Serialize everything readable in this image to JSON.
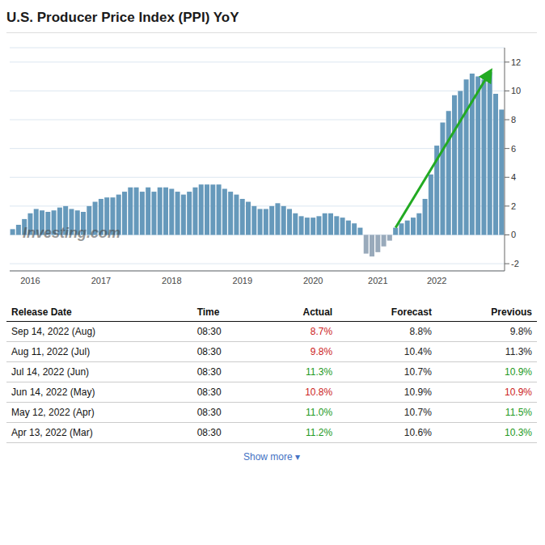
{
  "chart_data": {
    "type": "bar",
    "title": "U.S. Producer Price Index (PPI) YoY",
    "categories": [
      null,
      null,
      null,
      "2016",
      null,
      null,
      null,
      null,
      null,
      null,
      null,
      null,
      null,
      null,
      null,
      "2017",
      null,
      null,
      null,
      null,
      null,
      null,
      null,
      null,
      null,
      null,
      null,
      "2018",
      null,
      null,
      null,
      null,
      null,
      null,
      null,
      null,
      null,
      null,
      null,
      "2019",
      null,
      null,
      null,
      null,
      null,
      null,
      null,
      null,
      null,
      null,
      null,
      "2020",
      null,
      null,
      null,
      null,
      null,
      null,
      null,
      null,
      null,
      null,
      "2021",
      null,
      null,
      null,
      null,
      null,
      null,
      null,
      null,
      null,
      "2022",
      null,
      null,
      null,
      null,
      null,
      null,
      null,
      null,
      null,
      null,
      null
    ],
    "values": [
      0.4,
      0.7,
      1.1,
      1.5,
      1.8,
      1.7,
      1.6,
      1.7,
      1.9,
      2.0,
      1.8,
      1.7,
      1.6,
      2.0,
      2.3,
      2.5,
      2.6,
      2.6,
      2.8,
      3.0,
      3.3,
      3.3,
      3.0,
      3.3,
      3.0,
      3.3,
      3.3,
      3.2,
      3.0,
      2.8,
      3.0,
      3.3,
      3.5,
      3.5,
      3.5,
      3.5,
      3.2,
      3.0,
      2.8,
      2.5,
      2.3,
      2.0,
      1.8,
      1.8,
      2.0,
      2.2,
      2.0,
      1.8,
      1.5,
      1.3,
      1.2,
      1.2,
      1.3,
      1.5,
      1.5,
      1.3,
      1.2,
      1.0,
      0.8,
      0.5,
      -1.3,
      -1.5,
      -1.2,
      -0.8,
      -0.4,
      0.5,
      0.8,
      1.0,
      1.2,
      1.5,
      2.5,
      4.2,
      6.2,
      7.8,
      8.6,
      9.7,
      10.0,
      10.8,
      11.2,
      11.0,
      10.8,
      11.3,
      9.8,
      8.7
    ],
    "colors": [
      "#6699bb",
      "#6699bb",
      "#6699bb",
      "#6699bb",
      "#6699bb",
      "#6699bb",
      "#6699bb",
      "#6699bb",
      "#6699bb",
      "#6699bb",
      "#6699bb",
      "#6699bb",
      "#6699bb",
      "#6699bb",
      "#6699bb",
      "#6699bb",
      "#6699bb",
      "#6699bb",
      "#6699bb",
      "#6699bb",
      "#6699bb",
      "#6699bb",
      "#6699bb",
      "#6699bb",
      "#6699bb",
      "#6699bb",
      "#6699bb",
      "#6699bb",
      "#6699bb",
      "#6699bb",
      "#6699bb",
      "#6699bb",
      "#6699bb",
      "#6699bb",
      "#6699bb",
      "#6699bb",
      "#6699bb",
      "#6699bb",
      "#6699bb",
      "#6699bb",
      "#6699bb",
      "#6699bb",
      "#6699bb",
      "#6699bb",
      "#6699bb",
      "#6699bb",
      "#6699bb",
      "#6699bb",
      "#6699bb",
      "#6699bb",
      "#6699bb",
      "#6699bb",
      "#6699bb",
      "#6699bb",
      "#6699bb",
      "#6699bb",
      "#6699bb",
      "#6699bb",
      "#6699bb",
      "#6699bb",
      "#99aabb",
      "#99aabb",
      "#99aabb",
      "#99aabb",
      "#99aabb",
      "#6699bb",
      "#6699bb",
      "#6699bb",
      "#6699bb",
      "#6699bb",
      "#6699bb",
      "#6699bb",
      "#6699bb",
      "#6699bb",
      "#6699bb",
      "#6699bb",
      "#6699bb",
      "#6699bb",
      "#6699bb",
      "#6699bb",
      "#6699bb",
      "#6699bb",
      "#6699bb",
      "#6699bb"
    ],
    "ylim": [
      -2.5,
      13.0
    ],
    "yticks": [
      -2,
      0,
      2,
      4,
      6,
      8,
      10,
      12
    ],
    "grid": true,
    "arrow": {
      "from_index": 65,
      "to_index": 81,
      "color": "#22aa22"
    },
    "annotations": [
      "Investing.com",
      "Show more ▾"
    ],
    "table": {
      "headers": [
        "Release Date",
        "Time",
        "Actual",
        "Forecast",
        "Previous"
      ],
      "rows": [
        [
          "Sep 14, 2022 (Aug)",
          "08:30",
          "8.7%",
          "8.8%",
          "9.8%"
        ],
        [
          "Aug 11, 2022 (Jul)",
          "08:30",
          "9.8%",
          "10.4%",
          "11.3%"
        ],
        [
          "Jul 14, 2022 (Jun)",
          "08:30",
          "11.3%",
          "10.7%",
          "10.9%"
        ],
        [
          "Jun 14, 2022 (May)",
          "08:30",
          "10.8%",
          "10.9%",
          "10.9%"
        ],
        [
          "May 12, 2022 (Apr)",
          "08:30",
          "11.0%",
          "10.7%",
          "11.5%"
        ],
        [
          "Apr 13, 2022 (Mar)",
          "08:30",
          "11.2%",
          "10.6%",
          "10.3%"
        ]
      ],
      "colors": [
        [
          "#cc2222",
          "#222222",
          "#222222"
        ],
        [
          "#cc2222",
          "#222222",
          "#222222"
        ],
        [
          "#229922",
          "#222222",
          "#229922"
        ],
        [
          "#cc2222",
          "#222222",
          "#cc2222"
        ],
        [
          "#229922",
          "#222222",
          "#229922"
        ],
        [
          "#229922",
          "#222222",
          "#229922"
        ]
      ]
    }
  }
}
